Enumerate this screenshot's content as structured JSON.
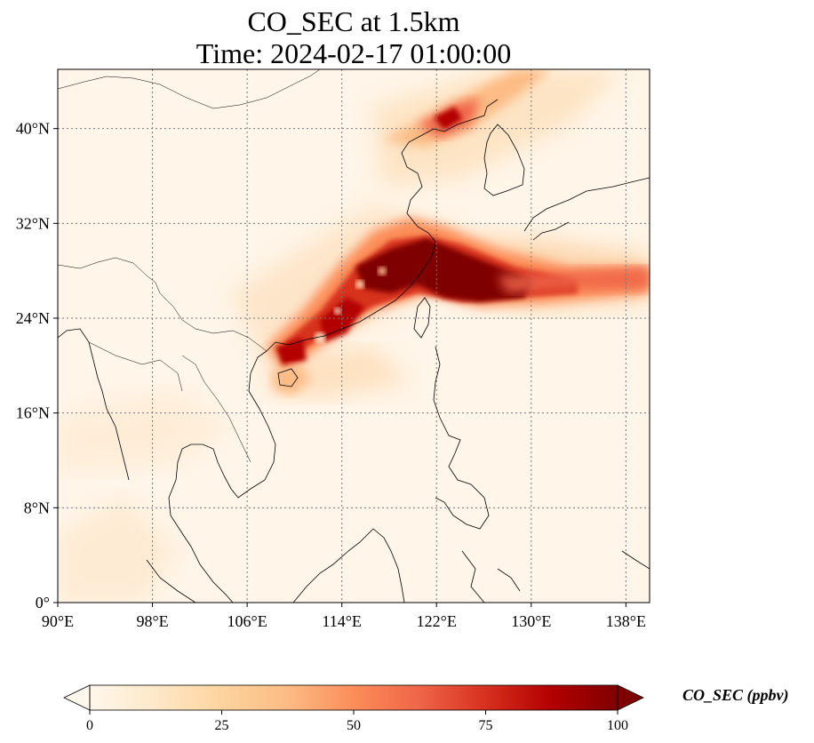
{
  "title": {
    "line1": "CO_SEC at 1.5km",
    "line2": "Time: 2024-02-17 01:00:00"
  },
  "map": {
    "lon_range": [
      90,
      140
    ],
    "lat_range": [
      0,
      45
    ],
    "gridlines": true,
    "lon_ticks": [
      {
        "value": 90,
        "label": "90°E"
      },
      {
        "value": 98,
        "label": "98°E"
      },
      {
        "value": 106,
        "label": "106°E"
      },
      {
        "value": 114,
        "label": "114°E"
      },
      {
        "value": 122,
        "label": "122°E"
      },
      {
        "value": 130,
        "label": "130°E"
      },
      {
        "value": 138,
        "label": "138°E"
      }
    ],
    "lat_ticks": [
      {
        "value": 0,
        "label": "0°"
      },
      {
        "value": 8,
        "label": "8°N"
      },
      {
        "value": 16,
        "label": "16°N"
      },
      {
        "value": 24,
        "label": "24°N"
      },
      {
        "value": 32,
        "label": "32°N"
      },
      {
        "value": 40,
        "label": "40°N"
      }
    ]
  },
  "colorbar": {
    "label": "CO_SEC (ppbv)",
    "min": 0,
    "max": 100,
    "extend": "both",
    "colormap": "OrRd",
    "ticks": [
      {
        "value": 0,
        "label": "0"
      },
      {
        "value": 25,
        "label": "25"
      },
      {
        "value": 50,
        "label": "50"
      },
      {
        "value": 75,
        "label": "75"
      },
      {
        "value": 100,
        "label": "100"
      }
    ]
  },
  "colors": {
    "low": "#fff7ec",
    "mid": "#fdbb84",
    "high": "#7f0000"
  }
}
